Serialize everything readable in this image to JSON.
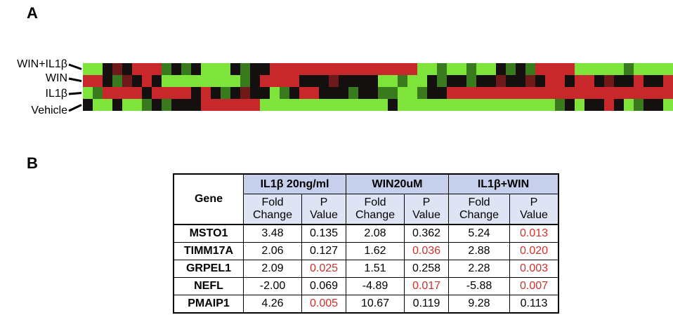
{
  "panels": {
    "a": "A",
    "b": "B"
  },
  "heatmap": {
    "row_labels": [
      "WIN+IL1β",
      "WIN",
      "IL1β",
      "Vehicle"
    ]
  },
  "table": {
    "gene_header": "Gene",
    "groups": [
      "IL1β 20ng/ml",
      "WIN20uM",
      "IL1β+WIN"
    ],
    "subheaders": [
      "Fold Change",
      "P Value"
    ],
    "rows": [
      [
        "MSTO1",
        "3.48",
        "0.135",
        "2.08",
        "0.362",
        "5.24",
        "0.013"
      ],
      [
        "TIMM17A",
        "2.06",
        "0.127",
        "1.62",
        "0.036",
        "2.88",
        "0.020"
      ],
      [
        "GRPEL1",
        "2.09",
        "0.025",
        "1.51",
        "0.258",
        "2.28",
        "0.003"
      ],
      [
        "NEFL",
        "-2.00",
        "0.069",
        "-4.89",
        "0.017",
        "-5.88",
        "0.007"
      ],
      [
        "PMAIP1",
        "4.26",
        "0.005",
        "10.67",
        "0.119",
        "9.28",
        "0.113"
      ]
    ],
    "significant_color": "#d0312d"
  }
}
